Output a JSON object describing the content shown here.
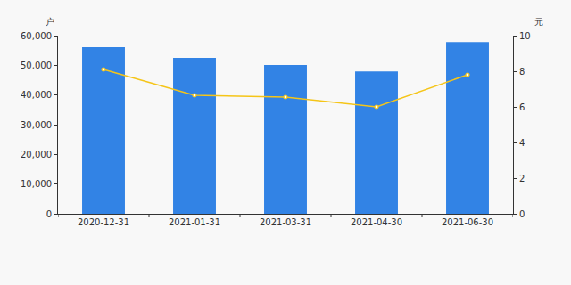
{
  "chart_data": {
    "type": "bar",
    "categories": [
      "2020-12-31",
      "2021-01-31",
      "2021-03-31",
      "2021-04-30",
      "2021-06-30"
    ],
    "ylabel": "户",
    "y2label": "元",
    "ylim": [
      0,
      60000
    ],
    "yticks": [
      0,
      {
        "value": 10000,
        "label": "10,000"
      },
      {
        "value": 20000,
        "label": "20,000"
      },
      {
        "value": 30000,
        "label": "30,000"
      },
      {
        "value": 40000,
        "label": "40,000"
      },
      {
        "value": 50000,
        "label": "50,000"
      },
      {
        "value": 60000,
        "label": "60,000"
      }
    ],
    "y2lim": [
      0,
      10
    ],
    "y2ticks": [
      0,
      2,
      4,
      6,
      8,
      10
    ],
    "grid": false,
    "series": [
      {
        "type": "bar",
        "color": "#3283e5",
        "values": [
          56100,
          52500,
          50100,
          47900,
          57800
        ]
      },
      {
        "type": "line",
        "axis": "y2",
        "color": "#f5c518",
        "marker": "circle",
        "line_style": "solid",
        "values": [
          8.1,
          6.65,
          6.55,
          6.0,
          7.8
        ]
      }
    ]
  }
}
